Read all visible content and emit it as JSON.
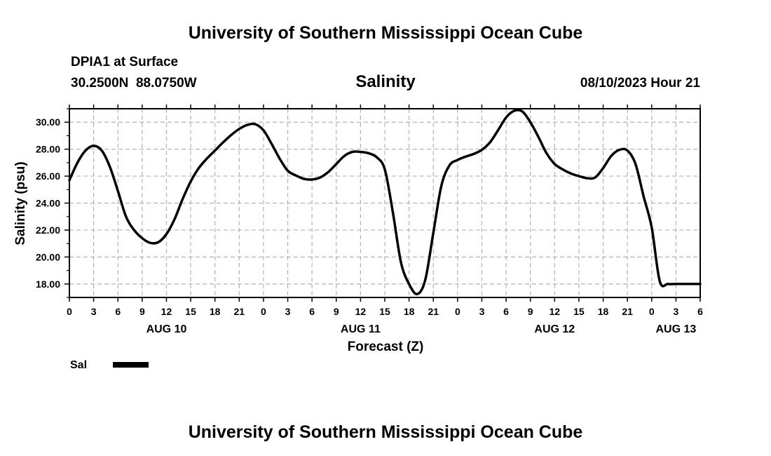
{
  "header": {
    "title": "University of Southern Mississippi Ocean Cube",
    "station": "DPIA1 at Surface",
    "coords": "30.2500N  88.0750W",
    "variable": "Salinity",
    "datetime": "08/10/2023 Hour 21"
  },
  "footer": {
    "title": "University of Southern Mississippi Ocean Cube"
  },
  "legend": {
    "label": "Sal",
    "color": "#000000"
  },
  "chart_data": {
    "type": "line",
    "title": "Salinity",
    "xlabel": "Forecast (Z)",
    "ylabel": "Salinity (psu)",
    "xlim": [
      0,
      78
    ],
    "ylim": [
      17.0,
      31.0
    ],
    "grid": true,
    "x_unit": "hours since AUG 10 00Z",
    "x_ticks": [
      0,
      3,
      6,
      9,
      12,
      15,
      18,
      21,
      24,
      27,
      30,
      33,
      36,
      39,
      42,
      45,
      48,
      51,
      54,
      57,
      60,
      63,
      66,
      69,
      72,
      75,
      78
    ],
    "x_tick_labels": [
      "0",
      "3",
      "6",
      "9",
      "12",
      "15",
      "18",
      "21",
      "0",
      "3",
      "6",
      "9",
      "12",
      "15",
      "18",
      "21",
      "0",
      "3",
      "6",
      "9",
      "12",
      "15",
      "18",
      "21",
      "0",
      "3",
      "6"
    ],
    "day_labels": [
      {
        "x": 12,
        "label": "AUG 10"
      },
      {
        "x": 36,
        "label": "AUG 11"
      },
      {
        "x": 60,
        "label": "AUG 12"
      },
      {
        "x": 75,
        "label": "AUG 13"
      }
    ],
    "y_ticks": [
      18.0,
      20.0,
      22.0,
      24.0,
      26.0,
      28.0,
      30.0
    ],
    "y_tick_labels": [
      "18.00",
      "20.00",
      "22.00",
      "24.00",
      "26.00",
      "28.00",
      "30.00"
    ],
    "series": [
      {
        "name": "Sal",
        "color": "#000000",
        "x": [
          0,
          1,
          2,
          3,
          4,
          5,
          6,
          7,
          8,
          9,
          10,
          11,
          12,
          13,
          14,
          15,
          16,
          17,
          18,
          19,
          20,
          21,
          22,
          23,
          24,
          25,
          26,
          27,
          28,
          29,
          30,
          31,
          32,
          33,
          34,
          35,
          36,
          37,
          38,
          39,
          40,
          41,
          42,
          43,
          44,
          45,
          46,
          47,
          48,
          49,
          50,
          51,
          52,
          53,
          54,
          55,
          56,
          57,
          58,
          59,
          60,
          61,
          62,
          63,
          64,
          65,
          66,
          67,
          68,
          69,
          70,
          71,
          72,
          73,
          74,
          75,
          76,
          77,
          78
        ],
        "values": [
          25.7,
          27.0,
          27.9,
          28.25,
          27.9,
          26.7,
          24.9,
          23.0,
          22.0,
          21.4,
          21.05,
          21.1,
          21.7,
          22.8,
          24.3,
          25.6,
          26.6,
          27.3,
          27.9,
          28.5,
          29.05,
          29.5,
          29.8,
          29.85,
          29.4,
          28.4,
          27.3,
          26.4,
          26.05,
          25.8,
          25.75,
          25.9,
          26.3,
          26.9,
          27.5,
          27.8,
          27.8,
          27.7,
          27.4,
          26.5,
          23.3,
          19.6,
          18.0,
          17.25,
          18.3,
          21.8,
          25.3,
          26.8,
          27.2,
          27.45,
          27.65,
          27.95,
          28.5,
          29.4,
          30.35,
          30.85,
          30.8,
          30.0,
          28.9,
          27.7,
          26.9,
          26.5,
          26.2,
          26.0,
          25.85,
          25.9,
          26.6,
          27.5,
          27.95,
          27.9,
          26.9,
          24.5,
          22.2,
          18.2,
          18.0,
          18.0,
          18.0,
          18.0,
          18.0
        ]
      }
    ]
  }
}
